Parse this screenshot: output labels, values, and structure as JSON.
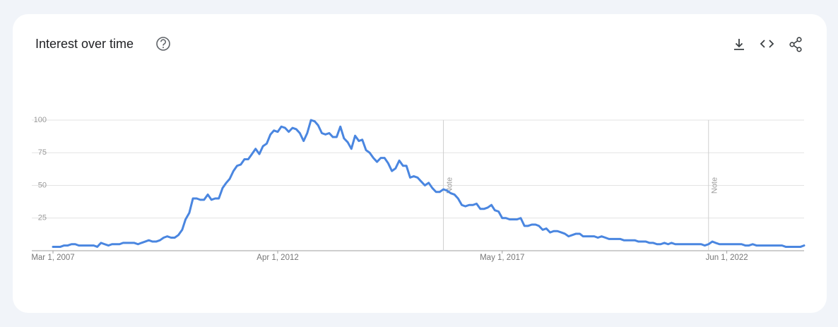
{
  "chart_data": {
    "type": "line",
    "title": "Interest over time",
    "x": [
      "2007-03-01",
      "2007-04-01",
      "2007-05-01",
      "2007-06-01",
      "2007-07-01",
      "2007-08-01",
      "2007-09-01",
      "2007-10-01",
      "2007-11-01",
      "2007-12-01",
      "2008-01-01",
      "2008-02-01",
      "2008-03-01",
      "2008-04-01",
      "2008-05-01",
      "2008-06-01",
      "2008-07-01",
      "2008-08-01",
      "2008-09-01",
      "2008-10-01",
      "2008-11-01",
      "2008-12-01",
      "2009-01-01",
      "2009-02-01",
      "2009-03-01",
      "2009-04-01",
      "2009-05-01",
      "2009-06-01",
      "2009-07-01",
      "2009-08-01",
      "2009-09-01",
      "2009-10-01",
      "2009-11-01",
      "2009-12-01",
      "2010-01-01",
      "2010-02-01",
      "2010-03-01",
      "2010-04-01",
      "2010-05-01",
      "2010-06-01",
      "2010-07-01",
      "2010-08-01",
      "2010-09-01",
      "2010-10-01",
      "2010-11-01",
      "2010-12-01",
      "2011-01-01",
      "2011-02-01",
      "2011-03-01",
      "2011-04-01",
      "2011-05-01",
      "2011-06-01",
      "2011-07-01",
      "2011-08-01",
      "2011-09-01",
      "2011-10-01",
      "2011-11-01",
      "2011-12-01",
      "2012-01-01",
      "2012-02-01",
      "2012-03-01",
      "2012-04-01",
      "2012-05-01",
      "2012-06-01",
      "2012-07-01",
      "2012-08-01",
      "2012-09-01",
      "2012-10-01",
      "2012-11-01",
      "2012-12-01",
      "2013-01-01",
      "2013-02-01",
      "2013-03-01",
      "2013-04-01",
      "2013-05-01",
      "2013-06-01",
      "2013-07-01",
      "2013-08-01",
      "2013-09-01",
      "2013-10-01",
      "2013-11-01",
      "2013-12-01",
      "2014-01-01",
      "2014-02-01",
      "2014-03-01",
      "2014-04-01",
      "2014-05-01",
      "2014-06-01",
      "2014-07-01",
      "2014-08-01",
      "2014-09-01",
      "2014-10-01",
      "2014-11-01",
      "2014-12-01",
      "2015-01-01",
      "2015-02-01",
      "2015-03-01",
      "2015-04-01",
      "2015-05-01",
      "2015-06-01",
      "2015-07-01",
      "2015-08-01",
      "2015-09-01",
      "2015-10-01",
      "2015-11-01",
      "2015-12-01",
      "2016-01-01",
      "2016-02-01",
      "2016-03-01",
      "2016-04-01",
      "2016-05-01",
      "2016-06-01",
      "2016-07-01",
      "2016-08-01",
      "2016-09-01",
      "2016-10-01",
      "2016-11-01",
      "2016-12-01",
      "2017-01-01",
      "2017-02-01",
      "2017-03-01",
      "2017-04-01",
      "2017-05-01",
      "2017-06-01",
      "2017-07-01",
      "2017-08-01",
      "2017-09-01",
      "2017-10-01",
      "2017-11-01",
      "2017-12-01",
      "2018-01-01",
      "2018-02-01",
      "2018-03-01",
      "2018-04-01",
      "2018-05-01",
      "2018-06-01",
      "2018-07-01",
      "2018-08-01",
      "2018-09-01",
      "2018-10-01",
      "2018-11-01",
      "2018-12-01",
      "2019-01-01",
      "2019-02-01",
      "2019-03-01",
      "2019-04-01",
      "2019-05-01",
      "2019-06-01",
      "2019-07-01",
      "2019-08-01",
      "2019-09-01",
      "2019-10-01",
      "2019-11-01",
      "2019-12-01",
      "2020-01-01",
      "2020-02-01",
      "2020-03-01",
      "2020-04-01",
      "2020-05-01",
      "2020-06-01",
      "2020-07-01",
      "2020-08-01",
      "2020-09-01",
      "2020-10-01",
      "2020-11-01",
      "2020-12-01",
      "2021-01-01",
      "2021-02-01",
      "2021-03-01",
      "2021-04-01",
      "2021-05-01",
      "2021-06-01",
      "2021-07-01",
      "2021-08-01",
      "2021-09-01",
      "2021-10-01",
      "2021-11-01",
      "2021-12-01",
      "2022-01-01",
      "2022-02-01",
      "2022-03-01",
      "2022-04-01",
      "2022-05-01",
      "2022-06-01",
      "2022-07-01",
      "2022-08-01",
      "2022-09-01",
      "2022-10-01",
      "2022-11-01",
      "2022-12-01",
      "2023-01-01",
      "2023-02-01",
      "2023-03-01",
      "2023-04-01",
      "2023-05-01",
      "2023-06-01",
      "2023-07-01",
      "2023-08-01",
      "2023-09-01",
      "2023-10-01",
      "2023-11-01",
      "2023-12-01",
      "2024-01-01",
      "2024-02-01",
      "2024-03-01"
    ],
    "series": [
      {
        "color": "#4a86e0",
        "values": [
          3,
          3,
          3,
          4,
          4,
          5,
          5,
          4,
          4,
          4,
          4,
          4,
          3,
          6,
          5,
          4,
          5,
          5,
          5,
          6,
          6,
          6,
          6,
          5,
          6,
          7,
          8,
          7,
          7,
          8,
          10,
          11,
          10,
          10,
          12,
          16,
          24,
          29,
          40,
          40,
          39,
          39,
          43,
          39,
          40,
          40,
          48,
          52,
          55,
          61,
          65,
          66,
          70,
          70,
          74,
          78,
          74,
          80,
          82,
          89,
          92,
          91,
          95,
          94,
          91,
          94,
          93,
          90,
          84,
          90,
          100,
          99,
          96,
          90,
          89,
          90,
          87,
          87,
          95,
          86,
          83,
          78,
          88,
          84,
          85,
          77,
          75,
          71,
          68,
          71,
          71,
          67,
          61,
          63,
          69,
          65,
          65,
          56,
          57,
          56,
          53,
          50,
          52,
          48,
          45,
          45,
          47,
          46,
          44,
          43,
          40,
          35,
          34,
          35,
          35,
          36,
          32,
          32,
          33,
          35,
          31,
          30,
          25,
          25,
          24,
          24,
          24,
          25,
          19,
          19,
          20,
          20,
          19,
          16,
          17,
          14,
          15,
          15,
          14,
          13,
          11,
          12,
          13,
          13,
          11,
          11,
          11,
          11,
          10,
          11,
          10,
          9,
          9,
          9,
          9,
          8,
          8,
          8,
          8,
          7,
          7,
          7,
          6,
          6,
          5,
          5,
          6,
          5,
          6,
          5,
          5,
          5,
          5,
          5,
          5,
          5,
          5,
          4,
          5,
          7,
          6,
          5,
          5,
          5,
          5,
          5,
          5,
          5,
          4,
          4,
          5,
          4,
          4,
          4,
          4,
          4,
          4,
          4,
          4,
          3,
          3,
          3,
          3,
          3,
          4
        ]
      }
    ],
    "xlim": [
      "2007-03-01",
      "2024-03-01"
    ],
    "xticks": [
      {
        "value": "2007-03-01",
        "label": "Mar 1, 2007"
      },
      {
        "value": "2012-04-01",
        "label": "Apr 1, 2012"
      },
      {
        "value": "2017-05-01",
        "label": "May 1, 2017"
      },
      {
        "value": "2022-06-01",
        "label": "Jun 1, 2022"
      }
    ],
    "ylim": [
      0,
      100
    ],
    "yticks": [
      25,
      50,
      75,
      100
    ],
    "grid": true,
    "annotations": [
      {
        "x": "2016-01-01",
        "label": "Note"
      },
      {
        "x": "2022-01-01",
        "label": "Note"
      }
    ]
  }
}
